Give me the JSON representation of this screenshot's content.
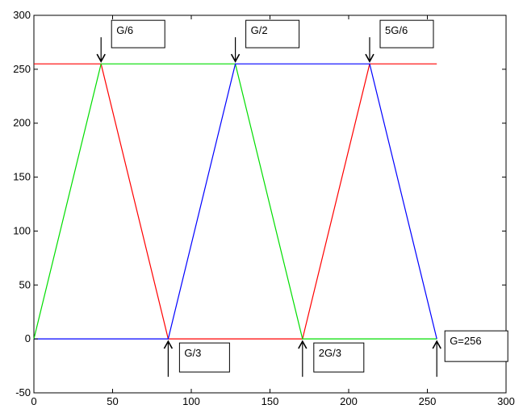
{
  "chart_data": {
    "type": "line",
    "title": "",
    "xlabel": "",
    "ylabel": "",
    "xlim": [
      0,
      300
    ],
    "ylim": [
      -50,
      300
    ],
    "grid": false,
    "x_ticks": [
      0,
      50,
      100,
      150,
      200,
      250,
      300
    ],
    "y_ticks": [
      -50,
      0,
      50,
      100,
      150,
      200,
      250,
      300
    ],
    "series": [
      {
        "color": "#ff0000",
        "x": [
          0,
          42.67,
          85.33,
          170.67,
          213.33,
          256
        ],
        "y": [
          255,
          255,
          0,
          0,
          255,
          255
        ]
      },
      {
        "color": "#00dd00",
        "x": [
          0,
          42.67,
          128,
          170.67,
          256
        ],
        "y": [
          0,
          255,
          255,
          0,
          0
        ]
      },
      {
        "color": "#0000ff",
        "x": [
          0,
          85.33,
          128,
          213.33,
          256
        ],
        "y": [
          0,
          0,
          255,
          255,
          0
        ]
      }
    ],
    "annotations": [
      {
        "text": "G/6",
        "x": 42.67,
        "y": 255,
        "arrow": "down"
      },
      {
        "text": "G/2",
        "x": 128,
        "y": 255,
        "arrow": "down"
      },
      {
        "text": "5G/6",
        "x": 213.33,
        "y": 255,
        "arrow": "down"
      },
      {
        "text": "G/3",
        "x": 85.33,
        "y": 0,
        "arrow": "up"
      },
      {
        "text": "2G/3",
        "x": 170.67,
        "y": 0,
        "arrow": "up"
      },
      {
        "text": "G=256",
        "x": 256,
        "y": 0,
        "arrow": "up"
      }
    ]
  }
}
